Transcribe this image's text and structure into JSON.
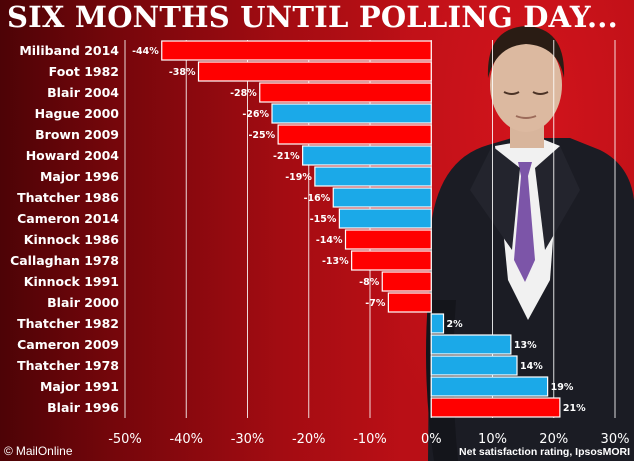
{
  "headline": "SIX MONTHS UNTIL POLLING DAY...",
  "brand": {
    "icon": "copyright-icon",
    "label": "MailOnline"
  },
  "source_note": "Net satisfaction rating, IpsosMORI",
  "colors": {
    "red_bar": "#ff0000",
    "blue_bar": "#1ba9e8",
    "bar_outline": "#ffffff"
  },
  "chart_data": {
    "type": "bar",
    "orientation": "horizontal",
    "title": "SIX MONTHS UNTIL POLLING DAY...",
    "xlabel": "Net satisfaction rating, IpsosMORI",
    "ylabel": "",
    "xlim": [
      -50,
      30
    ],
    "x_ticks": [
      "-50%",
      "-40%",
      "-30%",
      "-20%",
      "-10%",
      "0%",
      "10%",
      "20%",
      "30%"
    ],
    "grid": "vertical",
    "bar_color_meaning": "red = Labour leader, blue = Conservative leader",
    "categories": [
      "Miliband 2014",
      "Foot 1982",
      "Blair 2004",
      "Hague 2000",
      "Brown 2009",
      "Howard 2004",
      "Major 1996",
      "Thatcher 1986",
      "Cameron 2014",
      "Kinnock 1986",
      "Callaghan 1978",
      "Kinnock 1991",
      "Blair 2000",
      "Thatcher 1982",
      "Cameron 2009",
      "Thatcher 1978",
      "Major 1991",
      "Blair 1996"
    ],
    "values": [
      -44,
      -38,
      -28,
      -26,
      -25,
      -21,
      -19,
      -16,
      -15,
      -14,
      -13,
      -8,
      -7,
      2,
      13,
      14,
      19,
      21
    ],
    "value_labels": [
      "-44%",
      "-38%",
      "-28%",
      "-26%",
      "-25%",
      "-21%",
      "-19%",
      "-16%",
      "-15%",
      "-14%",
      "-13%",
      "-8%",
      "-7%",
      "2%",
      "13%",
      "14%",
      "19%",
      "21%"
    ],
    "bar_colors": [
      "red",
      "red",
      "red",
      "blue",
      "red",
      "blue",
      "blue",
      "blue",
      "blue",
      "red",
      "red",
      "red",
      "red",
      "blue",
      "blue",
      "blue",
      "blue",
      "red"
    ]
  }
}
